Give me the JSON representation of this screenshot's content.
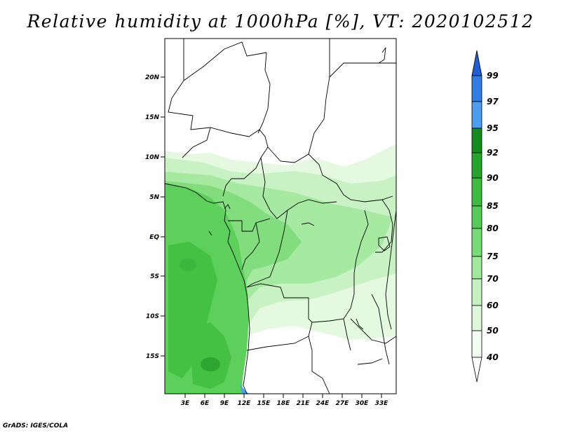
{
  "title": "Relative humidity at 1000hPa [%], VT: 2020102512",
  "footer": "GrADS: IGES/COLA",
  "map": {
    "lat_labels": [
      "20N",
      "15N",
      "10N",
      "5N",
      "EQ",
      "5S",
      "10S",
      "15S"
    ],
    "lon_labels": [
      "3E",
      "6E",
      "9E",
      "12E",
      "15E",
      "18E",
      "21E",
      "24E",
      "27E",
      "30E",
      "33E"
    ]
  },
  "colorbar": {
    "levels": [
      "99",
      "97",
      "95",
      "92",
      "90",
      "85",
      "80",
      "75",
      "70",
      "60",
      "50",
      "40"
    ],
    "colors": [
      "#1e5fd6",
      "#2f7ee8",
      "#4a9ff0",
      "#118c1d",
      "#26a52d",
      "#3cbb3f",
      "#55cc55",
      "#78dc76",
      "#a0e89c",
      "#c3f1bf",
      "#def8da",
      "#f3fdf1"
    ]
  }
}
